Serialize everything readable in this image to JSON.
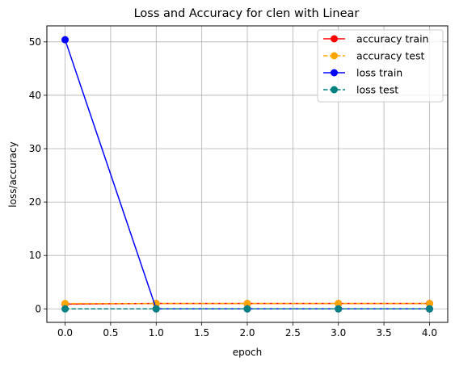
{
  "chart_data": {
    "type": "line",
    "title": "Loss and Accuracy for clen with Linear",
    "xlabel": "epoch",
    "ylabel": "loss/accuracy",
    "x": [
      0,
      1,
      2,
      3,
      4
    ],
    "xlim": [
      -0.2,
      4.2
    ],
    "ylim": [
      -2.53,
      53.0
    ],
    "xticks": [
      0.0,
      0.5,
      1.0,
      1.5,
      2.0,
      2.5,
      3.0,
      3.5,
      4.0
    ],
    "xtick_labels": [
      "0.0",
      "0.5",
      "1.0",
      "1.5",
      "2.0",
      "2.5",
      "3.0",
      "3.5",
      "4.0"
    ],
    "yticks": [
      0,
      10,
      20,
      30,
      40,
      50
    ],
    "ytick_labels": [
      "0",
      "10",
      "20",
      "30",
      "40",
      "50"
    ],
    "grid": true,
    "legend_position": "top-right",
    "series": [
      {
        "name": "accuracy train",
        "values": [
          0.9,
          1.0,
          1.0,
          1.0,
          1.0
        ],
        "color": "#ff0000",
        "dashed": false
      },
      {
        "name": "accuracy test",
        "values": [
          1.0,
          1.0,
          1.0,
          1.0,
          1.0
        ],
        "color": "#ffa500",
        "dashed": true
      },
      {
        "name": "loss train",
        "values": [
          50.4,
          0.01,
          0.0,
          0.0,
          0.0
        ],
        "color": "#0000ff",
        "dashed": false
      },
      {
        "name": "loss test",
        "values": [
          0.0,
          0.0,
          0.0,
          0.0,
          0.0
        ],
        "color": "#008080",
        "dashed": true
      }
    ]
  }
}
